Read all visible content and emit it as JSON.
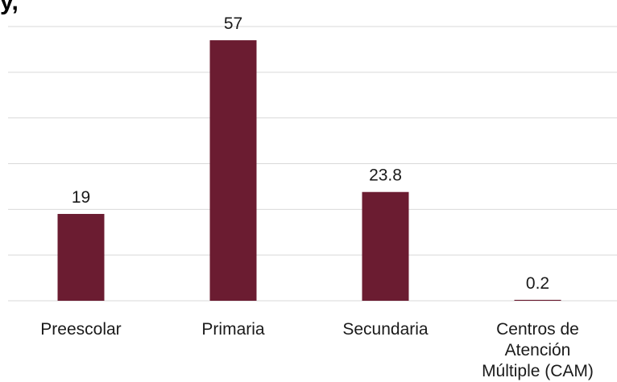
{
  "title_fragment": "y,",
  "chart_data": {
    "type": "bar",
    "categories": [
      "Preescolar",
      "Primaria",
      "Secundaria",
      "Centros de Atención Múltiple (CAM)"
    ],
    "category_lines": [
      [
        "Preescolar"
      ],
      [
        "Primaria"
      ],
      [
        "Secundaria"
      ],
      [
        "Centros de",
        "Atención",
        "Múltiple (CAM)"
      ]
    ],
    "values": [
      19,
      57,
      23.8,
      0.2
    ],
    "data_labels": [
      "19",
      "57",
      "23.8",
      "0.2"
    ],
    "ylim": [
      0,
      60
    ],
    "grid": true,
    "colors": {
      "bar": "#6b1c31",
      "grid": "#d9d9d9",
      "text": "#1a1a1a"
    }
  }
}
